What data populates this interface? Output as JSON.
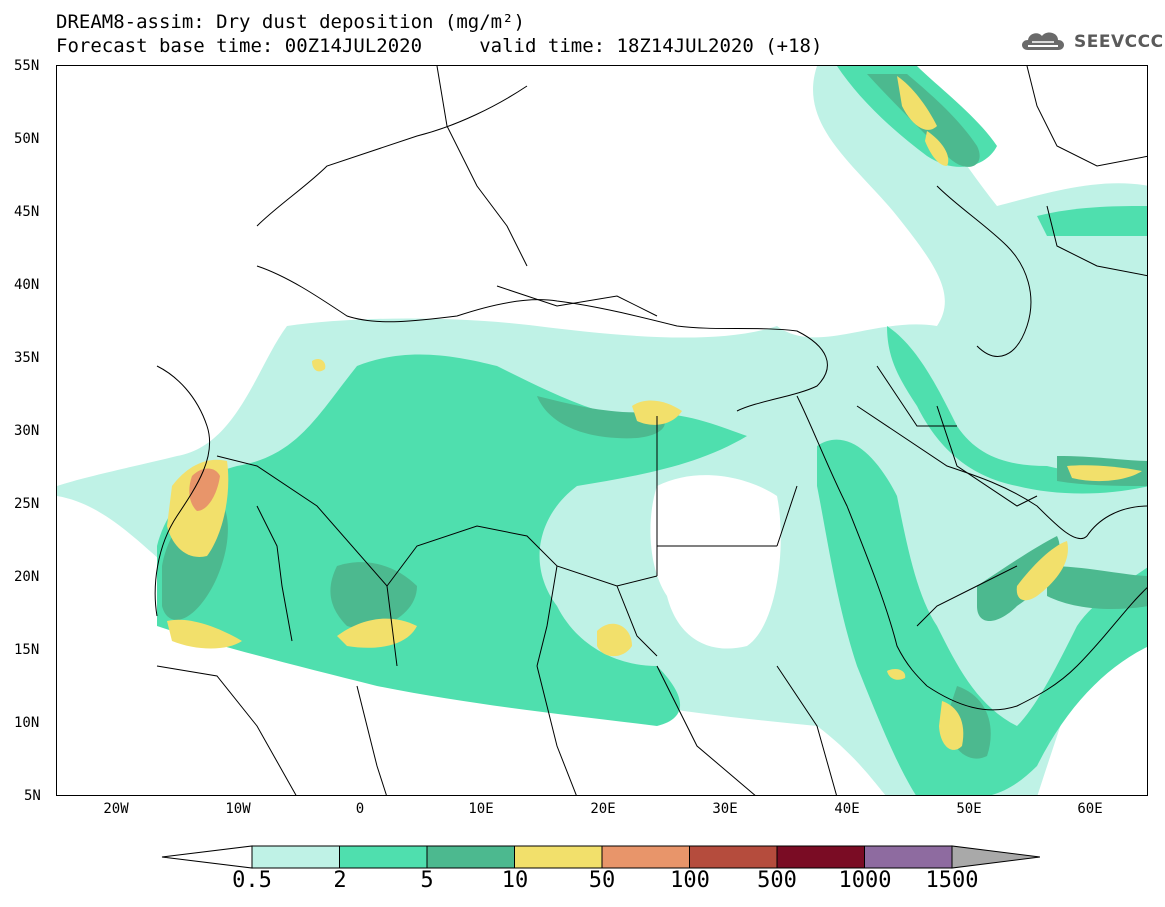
{
  "header": {
    "title_line1": "DREAM8-assim: Dry dust deposition (mg/m²)",
    "title_line2": "Forecast base time: 00Z14JUL2020     valid time: 18Z14JUL2020 (+18)"
  },
  "logo": {
    "text": "SEEVCCC",
    "icon": "cloud-icon"
  },
  "map": {
    "lat_labels": [
      "55N",
      "50N",
      "45N",
      "40N",
      "35N",
      "30N",
      "25N",
      "20N",
      "15N",
      "10N",
      "5N"
    ],
    "lon_labels": [
      "20W",
      "10W",
      "0",
      "10E",
      "20E",
      "30E",
      "40E",
      "50E",
      "60E"
    ],
    "colors": {
      "land_bg": "#ffffff",
      "coast": "#000000"
    }
  },
  "legend": {
    "labels": [
      "0.5",
      "2",
      "5",
      "10",
      "50",
      "100",
      "500",
      "1000",
      "1500"
    ],
    "colors": [
      "#bff2e6",
      "#4fdfae",
      "#4cb98f",
      "#f2e06b",
      "#e8956a",
      "#b54c3d",
      "#7a0c24",
      "#8e6ba0"
    ],
    "left_arrow_color": "#ffffff",
    "right_arrow_color": "#a9a9a9"
  }
}
